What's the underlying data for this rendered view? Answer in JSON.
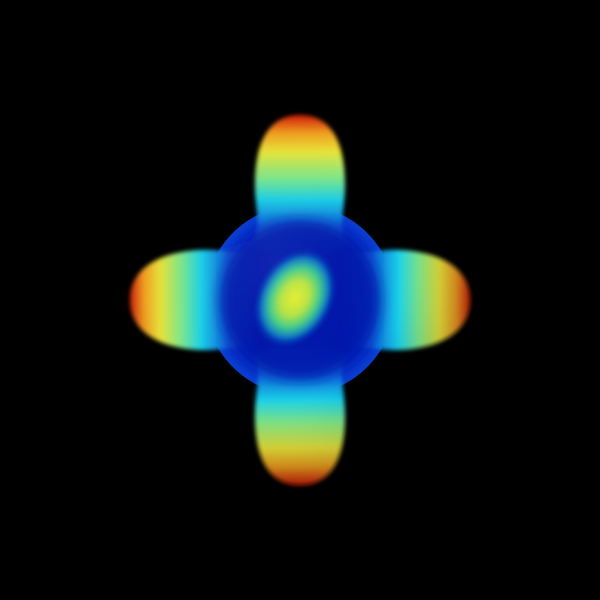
{
  "scene": {
    "background_color": "#000000",
    "object": "3d-surface-four-lobed",
    "colormap": "jet",
    "colormap_stops": [
      "#00007f",
      "#0000ff",
      "#0080ff",
      "#00ffff",
      "#7fff7f",
      "#ffff00",
      "#ff8000",
      "#ff0000",
      "#7f0000"
    ],
    "lighting": "shaded",
    "lobes": 4
  }
}
